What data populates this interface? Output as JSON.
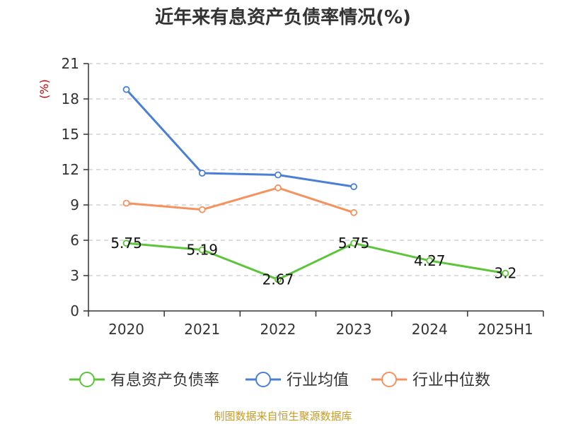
{
  "chart_data": {
    "type": "line",
    "title": "近年来有息资产负债率情况(%)",
    "ylabel": "(%)",
    "ylim": [
      0,
      21
    ],
    "yticks": [
      0,
      3,
      6,
      9,
      12,
      15,
      18,
      21
    ],
    "categories": [
      "2020",
      "2021",
      "2022",
      "2023",
      "2024",
      "2025H1"
    ],
    "grid": true,
    "legend_position": "bottom",
    "series": [
      {
        "name": "有息资产负债率",
        "color": "#5cc53a",
        "values": [
          5.75,
          5.19,
          2.67,
          5.75,
          4.27,
          3.2
        ],
        "labels": [
          "5.75",
          "5.19",
          "2.67",
          "5.75",
          "4.27",
          "3.2"
        ]
      },
      {
        "name": "行业均值",
        "color": "#4a7fd8",
        "values": [
          18.8,
          11.7,
          11.55,
          10.55,
          null,
          null
        ]
      },
      {
        "name": "行业中位数",
        "color": "#f5925e",
        "values": [
          9.15,
          8.6,
          10.45,
          8.35,
          null,
          null
        ]
      }
    ]
  },
  "footer": {
    "source": "制图数据来自恒生聚源数据库"
  }
}
